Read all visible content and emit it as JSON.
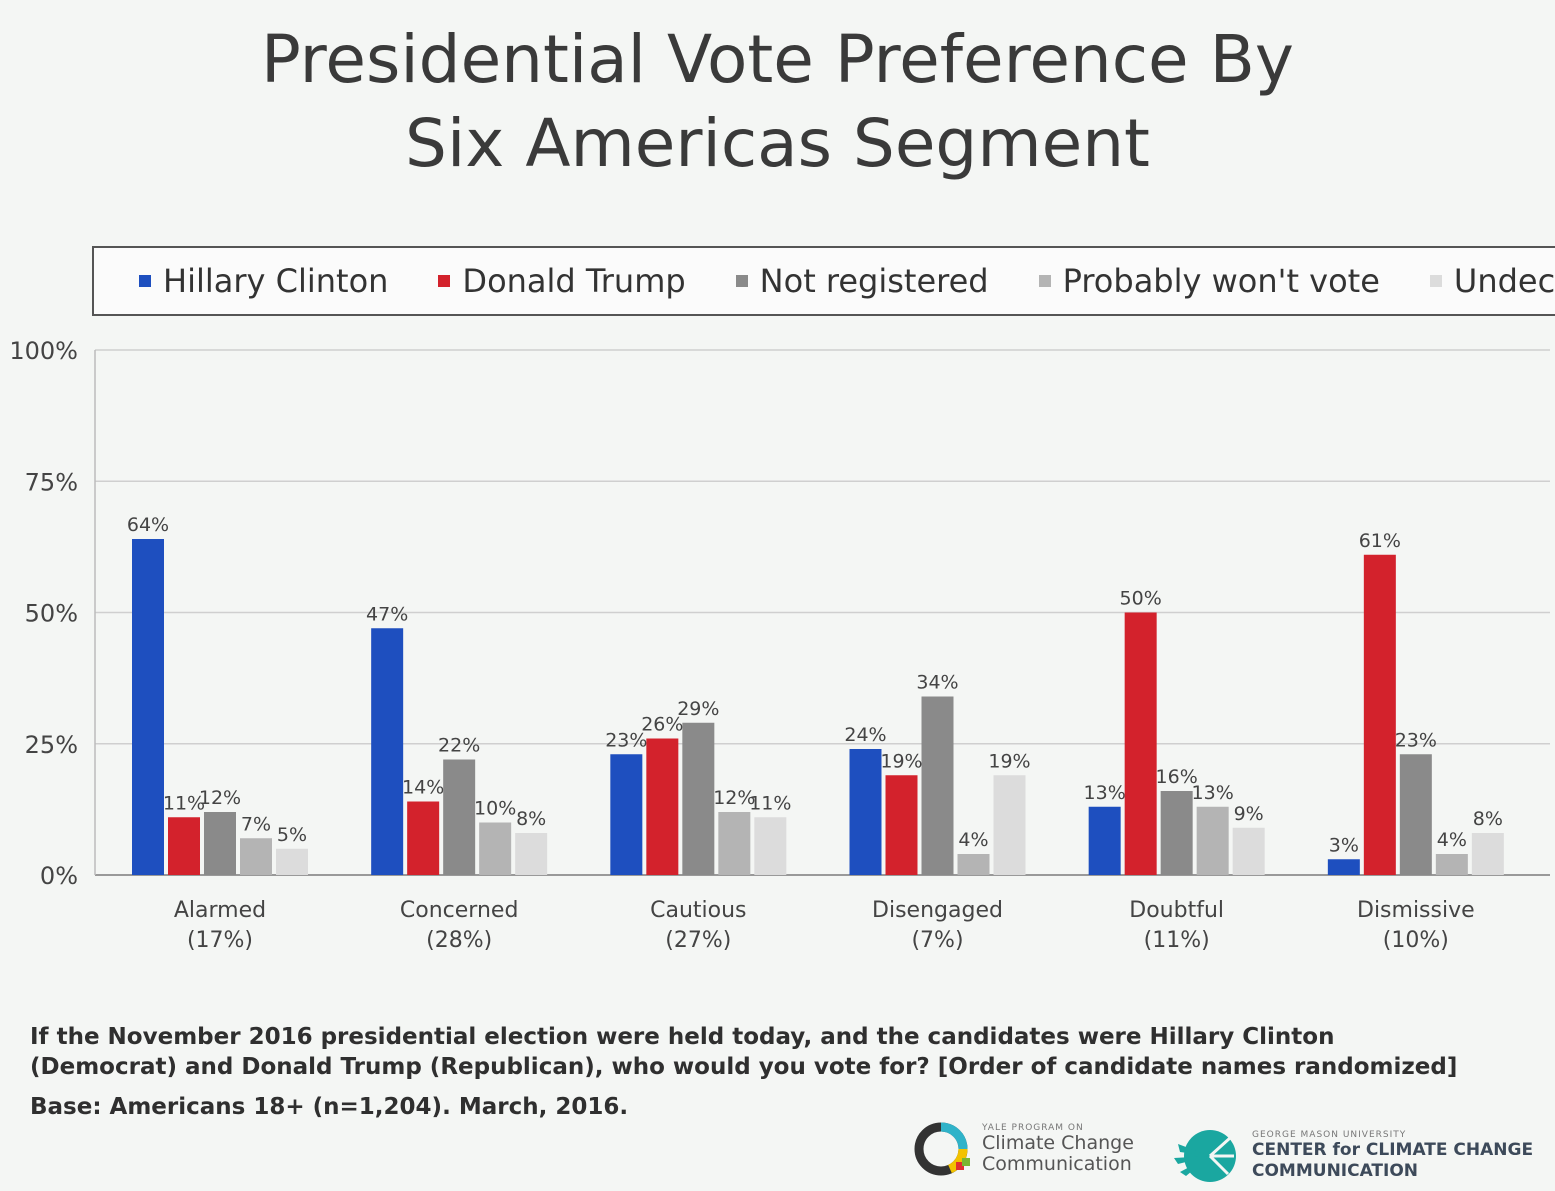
{
  "title_line1": "Presidential Vote Preference By",
  "title_line2": "Six Americas Segment",
  "legend": [
    "Hillary Clinton",
    "Donald Trump",
    "Not registered",
    "Probably won't vote",
    "Undecided"
  ],
  "colors": {
    "Hillary Clinton": "#1e4fbf",
    "Donald Trump": "#d3222c",
    "Not registered": "#8a8a8a",
    "Probably won't vote": "#b4b4b4",
    "Undecided": "#dcdcdc"
  },
  "question": "If the November 2016 presidential election were held today, and the candidates were Hillary Clinton (Democrat) and Donald Trump (Republican), who would you vote for? [Order of candidate names randomized]",
  "base_note": "Base: Americans 18+ (n=1,204). March, 2016.",
  "logo1": {
    "small": "YALE PROGRAM ON",
    "line1": "Climate Change",
    "line2": "Communication"
  },
  "logo2": {
    "small": "GEORGE MASON UNIVERSITY",
    "line1": "CENTER for CLIMATE CHANGE",
    "line2": "COMMUNICATION"
  },
  "chart_data": {
    "type": "bar",
    "title": "Presidential Vote Preference By Six Americas Segment",
    "categories": [
      "Alarmed (17%)",
      "Concerned (28%)",
      "Cautious (27%)",
      "Disengaged (7%)",
      "Doubtful (11%)",
      "Dismissive (10%)"
    ],
    "category_lines": [
      [
        "Alarmed",
        "(17%)"
      ],
      [
        "Concerned",
        "(28%)"
      ],
      [
        "Cautious",
        "(27%)"
      ],
      [
        "Disengaged",
        "(7%)"
      ],
      [
        "Doubtful",
        "(11%)"
      ],
      [
        "Dismissive",
        "(10%)"
      ]
    ],
    "series": [
      {
        "name": "Hillary Clinton",
        "values": [
          64,
          47,
          23,
          24,
          13,
          3
        ]
      },
      {
        "name": "Donald Trump",
        "values": [
          11,
          14,
          26,
          19,
          50,
          61
        ]
      },
      {
        "name": "Not registered",
        "values": [
          12,
          22,
          29,
          34,
          16,
          23
        ]
      },
      {
        "name": "Probably won't vote",
        "values": [
          7,
          10,
          12,
          4,
          13,
          4
        ]
      },
      {
        "name": "Undecided",
        "values": [
          5,
          8,
          11,
          19,
          9,
          8
        ]
      }
    ],
    "yticks": [
      "0%",
      "25%",
      "50%",
      "75%",
      "100%"
    ],
    "ylim": [
      0,
      100
    ],
    "grid": true,
    "legend_position": "top"
  }
}
